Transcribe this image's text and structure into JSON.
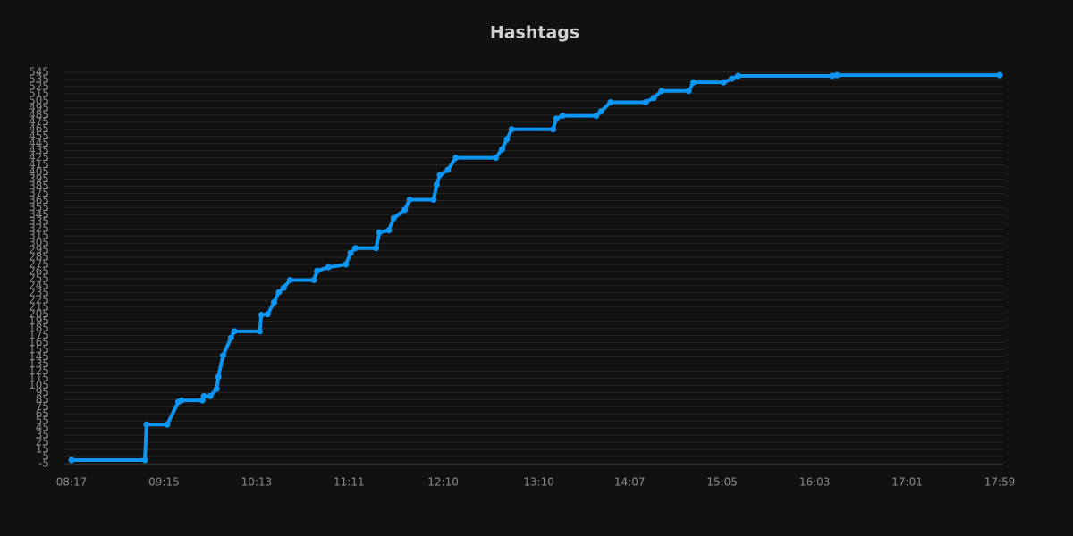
{
  "chart_data": {
    "type": "line",
    "title": "Hashtags",
    "color": "#0c95f2",
    "grid": true,
    "x": [
      "08:17",
      "09:03",
      "09:04",
      "09:17",
      "09:24",
      "09:26",
      "09:39",
      "09:40",
      "09:44",
      "09:48",
      "09:49",
      "09:52",
      "09:57",
      "09:59",
      "10:15",
      "10:16",
      "10:20",
      "10:24",
      "10:27",
      "10:30",
      "10:34",
      "10:49",
      "10:51",
      "10:58",
      "11:09",
      "11:12",
      "11:15",
      "11:28",
      "11:30",
      "11:36",
      "11:39",
      "11:46",
      "11:49",
      "12:04",
      "12:06",
      "12:08",
      "12:13",
      "12:18",
      "12:43",
      "12:47",
      "12:50",
      "12:53",
      "13:19",
      "13:21",
      "13:25",
      "13:46",
      "13:49",
      "13:55",
      "14:17",
      "14:22",
      "14:27",
      "14:44",
      "14:47",
      "15:06",
      "15:11",
      "15:15",
      "16:14",
      "16:17",
      "17:59"
    ],
    "values": [
      0,
      0,
      50,
      50,
      82,
      84,
      84,
      90,
      90,
      100,
      117,
      147,
      172,
      181,
      181,
      204,
      205,
      222,
      236,
      242,
      253,
      253,
      266,
      271,
      275,
      291,
      298,
      298,
      320,
      323,
      340,
      352,
      366,
      366,
      387,
      401,
      408,
      425,
      425,
      437,
      451,
      465,
      465,
      480,
      484,
      484,
      490,
      503,
      503,
      509,
      519,
      519,
      531,
      531,
      536,
      540,
      540,
      541,
      541
    ],
    "xlim": [
      "08:17",
      "17:59"
    ],
    "xticks": [
      "08:17",
      "09:15",
      "10:13",
      "11:11",
      "12:10",
      "13:10",
      "14:07",
      "15:05",
      "16:03",
      "17:01",
      "17:59"
    ],
    "ylim": [
      -5,
      545
    ],
    "yticks": [
      -5,
      5,
      15,
      25,
      35,
      45,
      55,
      65,
      75,
      85,
      95,
      105,
      115,
      125,
      135,
      145,
      155,
      165,
      175,
      185,
      195,
      205,
      215,
      225,
      235,
      245,
      255,
      265,
      275,
      285,
      295,
      305,
      315,
      325,
      335,
      345,
      355,
      365,
      375,
      385,
      395,
      405,
      415,
      425,
      435,
      445,
      455,
      465,
      475,
      485,
      495,
      505,
      515,
      525,
      535,
      545
    ]
  }
}
